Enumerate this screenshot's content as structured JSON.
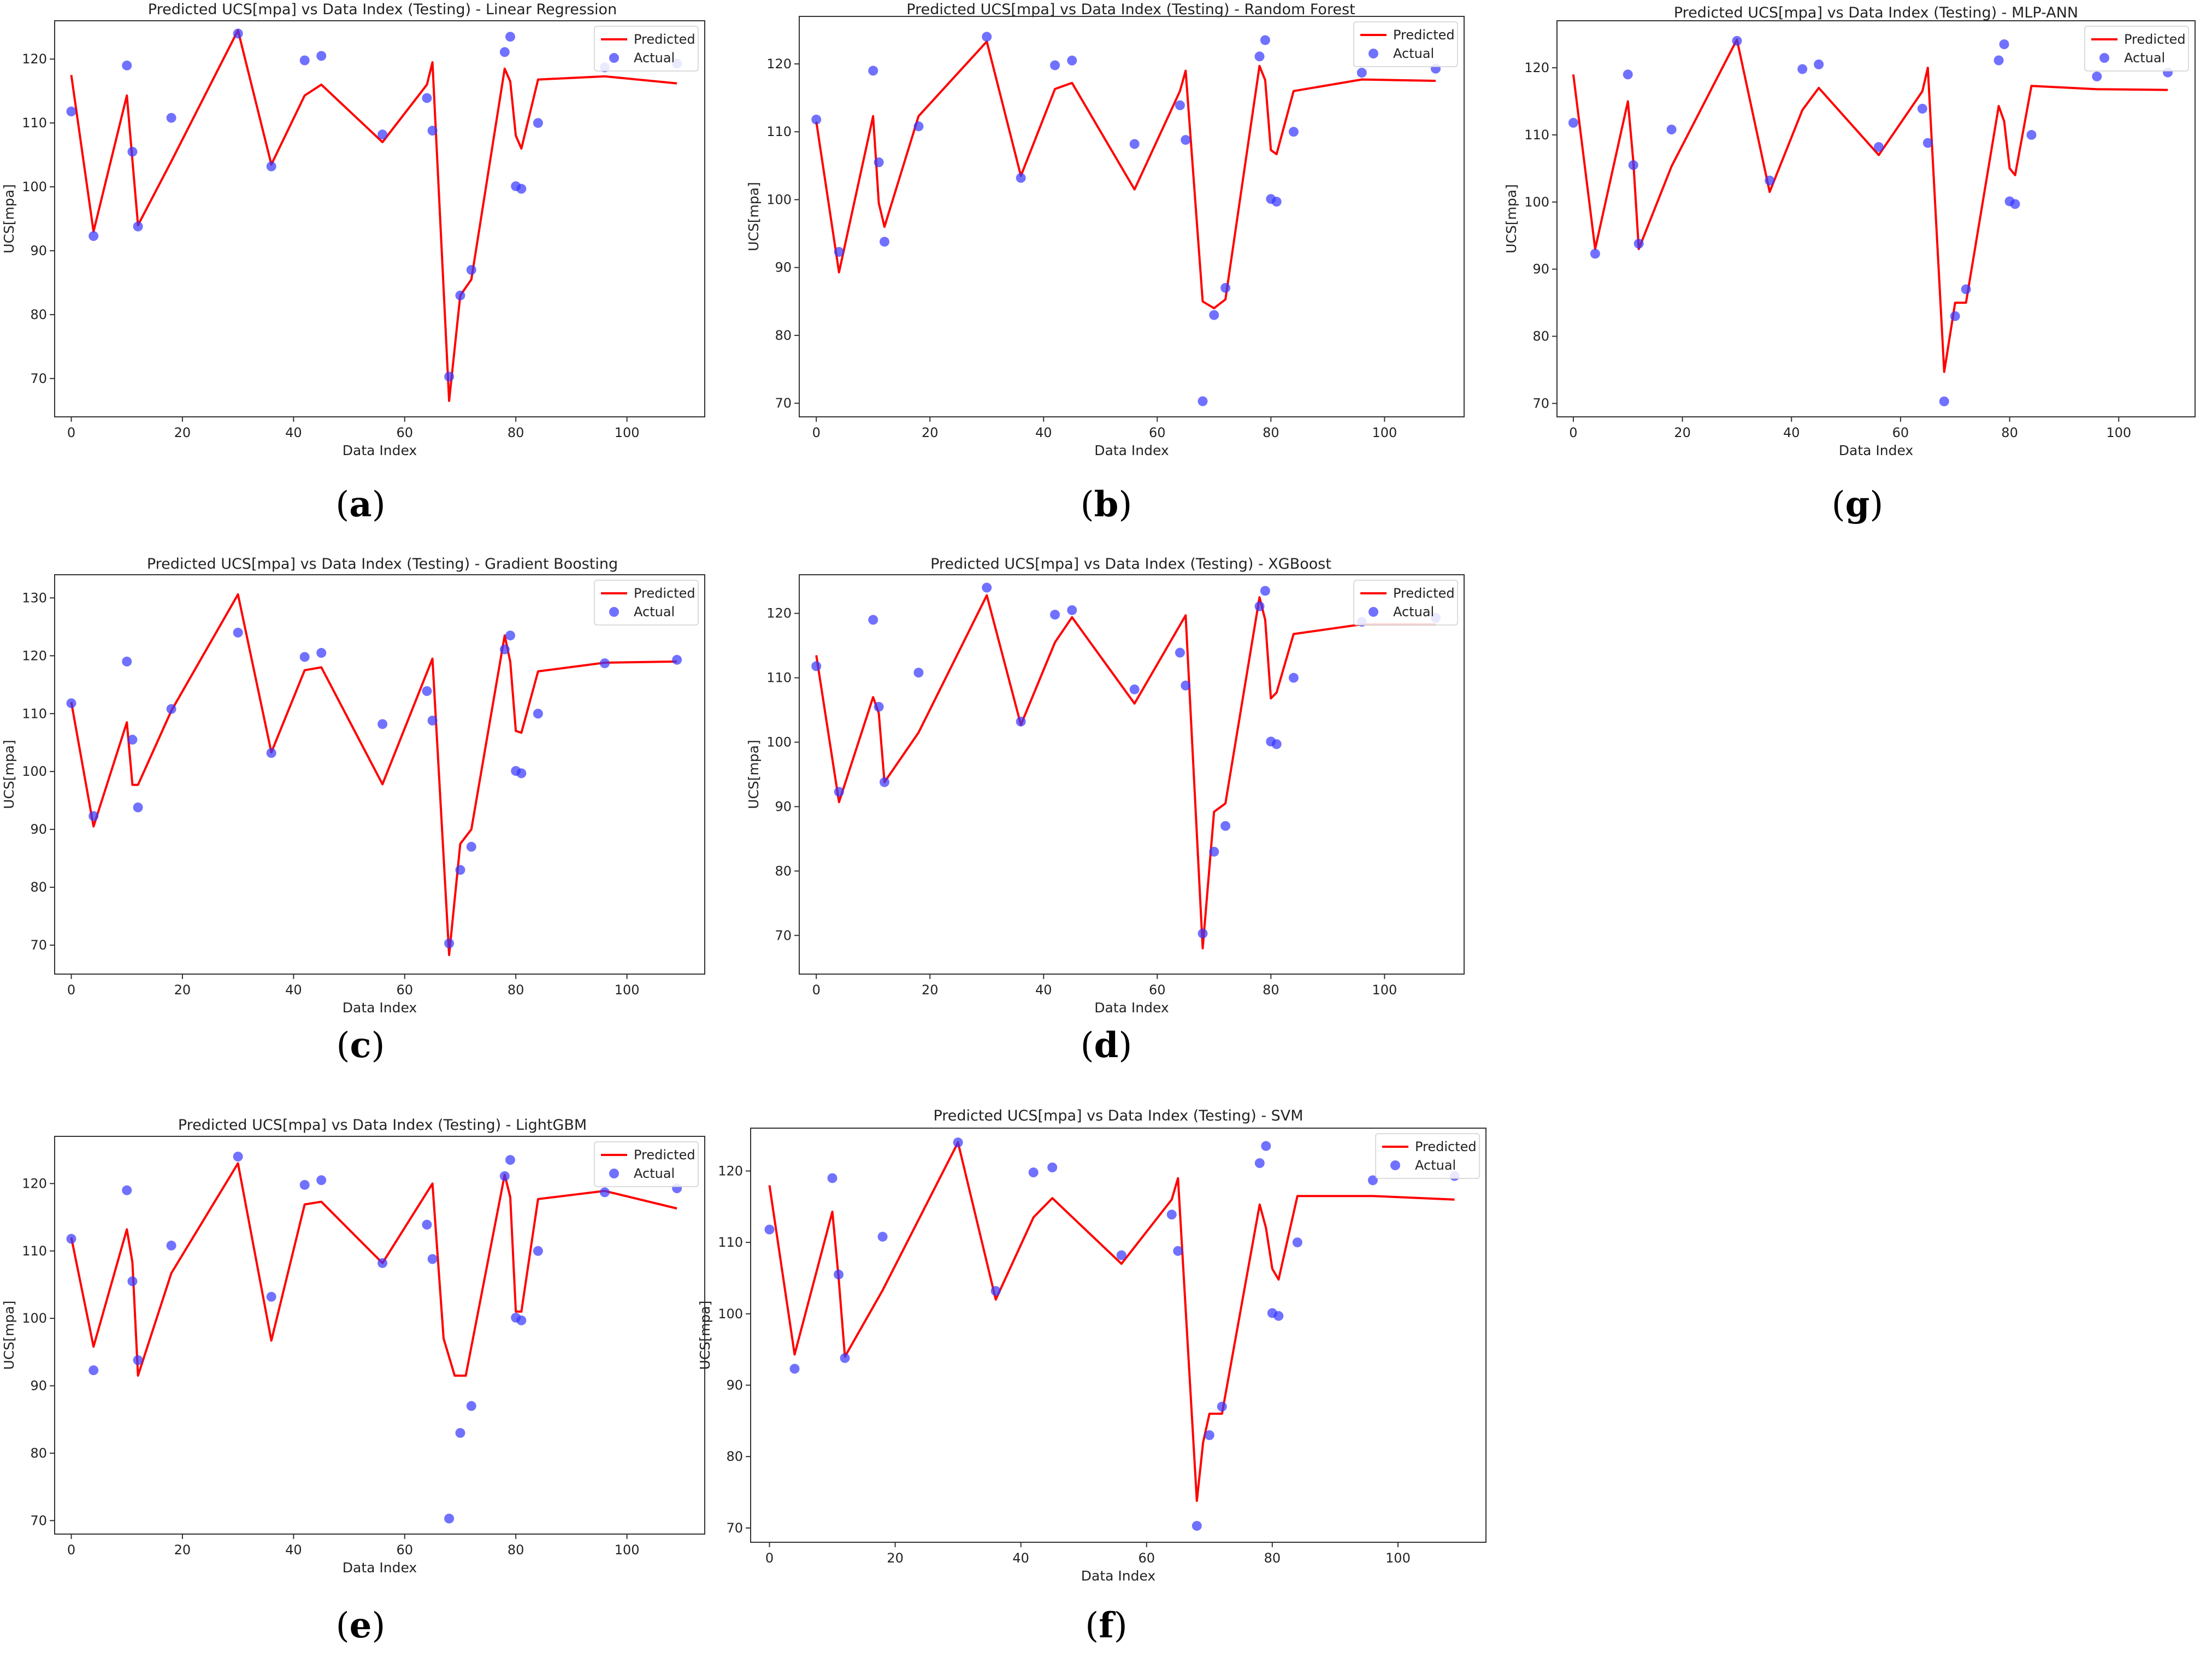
{
  "figure": {
    "common": {
      "xlabel": "Data Index",
      "ylabel": "UCS[mpa]",
      "legend": [
        "Predicted",
        "Actual"
      ],
      "legend_position": "top-right",
      "colors": {
        "predicted": "#ff0000",
        "actual": "#3a3aff",
        "axes": "#333333"
      }
    }
  },
  "chart_data": [
    {
      "id": "a",
      "caption": "(a)",
      "type": "line",
      "title": "Predicted UCS[mpa] vs Data Index (Testing) - Linear Regression",
      "xlabel": "Data Index",
      "ylabel": "UCS[mpa]",
      "xlim": [
        -3,
        114
      ],
      "ylim": [
        64,
        126
      ],
      "xticks": [
        0,
        20,
        40,
        60,
        80,
        100
      ],
      "yticks": [
        70,
        80,
        90,
        100,
        110,
        120
      ],
      "series": [
        {
          "name": "Predicted",
          "kind": "line",
          "x": [
            0,
            4,
            10,
            12,
            18,
            30,
            36,
            42,
            45,
            56,
            64,
            65,
            68,
            70,
            72,
            78,
            79,
            80,
            81,
            84,
            96,
            109
          ],
          "y": [
            117.5,
            93,
            114.3,
            94,
            104,
            124.5,
            103.5,
            114.3,
            116,
            107,
            116,
            119.5,
            66.5,
            83,
            85.5,
            118.5,
            116.5,
            108,
            106,
            116.8,
            117.3,
            116.2
          ]
        },
        {
          "name": "Actual",
          "kind": "scatter",
          "x": [
            0,
            4,
            10,
            11,
            12,
            18,
            30,
            36,
            42,
            45,
            56,
            64,
            65,
            68,
            70,
            72,
            78,
            79,
            80,
            81,
            84,
            96,
            109
          ],
          "y": [
            111.8,
            92.3,
            119,
            105.5,
            93.8,
            110.8,
            124,
            103.2,
            119.8,
            120.5,
            108.2,
            113.9,
            108.8,
            70.3,
            83,
            87,
            121.1,
            123.5,
            100.1,
            99.7,
            110,
            118.7,
            119.3
          ]
        }
      ]
    },
    {
      "id": "b",
      "caption": "(b)",
      "type": "line",
      "title": "Predicted UCS[mpa] vs Data Index (Testing) - Random Forest",
      "xlabel": "Data Index",
      "ylabel": "UCS[mpa]",
      "xlim": [
        -3,
        114
      ],
      "ylim": [
        68,
        127
      ],
      "xticks": [
        0,
        20,
        40,
        60,
        80,
        100
      ],
      "yticks": [
        70,
        80,
        90,
        100,
        110,
        120
      ],
      "series": [
        {
          "name": "Predicted",
          "kind": "line",
          "x": [
            0,
            4,
            10,
            11,
            12,
            18,
            30,
            36,
            42,
            45,
            56,
            64,
            65,
            68,
            70,
            72,
            78,
            79,
            80,
            81,
            84,
            96,
            109
          ],
          "y": [
            111.5,
            89.3,
            112.3,
            99.5,
            96,
            112.3,
            123.3,
            103.5,
            116.3,
            117.2,
            101.5,
            116,
            119,
            85,
            84,
            85.3,
            119.7,
            117.6,
            107.3,
            106.7,
            116,
            117.7,
            117.5
          ]
        },
        {
          "name": "Actual",
          "kind": "scatter",
          "x": [
            0,
            4,
            10,
            11,
            12,
            18,
            30,
            36,
            42,
            45,
            56,
            64,
            65,
            68,
            70,
            72,
            78,
            79,
            80,
            81,
            84,
            96,
            109
          ],
          "y": [
            111.8,
            92.3,
            119,
            105.5,
            93.8,
            110.8,
            124,
            103.2,
            119.8,
            120.5,
            108.2,
            113.9,
            108.8,
            70.3,
            83,
            87,
            121.1,
            123.5,
            100.1,
            99.7,
            110,
            118.7,
            119.3
          ]
        }
      ]
    },
    {
      "id": "g",
      "caption": "(g)",
      "type": "line",
      "title": "Predicted UCS[mpa] vs Data Index (Testing) - MLP-ANN",
      "xlabel": "Data Index",
      "ylabel": "UCS[mpa]",
      "xlim": [
        -3,
        114
      ],
      "ylim": [
        68,
        127
      ],
      "xticks": [
        0,
        20,
        40,
        60,
        80,
        100
      ],
      "yticks": [
        70,
        80,
        90,
        100,
        110,
        120
      ],
      "series": [
        {
          "name": "Predicted",
          "kind": "line",
          "x": [
            0,
            4,
            10,
            11,
            12,
            18,
            30,
            36,
            42,
            45,
            56,
            64,
            65,
            68,
            70,
            72,
            78,
            79,
            80,
            81,
            84,
            96,
            109
          ],
          "y": [
            119,
            93,
            115,
            106,
            93,
            105.3,
            124.2,
            101.5,
            113.7,
            117,
            107,
            116.5,
            120,
            74.7,
            85,
            85,
            114.3,
            112,
            105,
            104,
            117.3,
            116.8,
            116.7
          ]
        },
        {
          "name": "Actual",
          "kind": "scatter",
          "x": [
            0,
            4,
            10,
            11,
            12,
            18,
            30,
            36,
            42,
            45,
            56,
            64,
            65,
            68,
            70,
            72,
            78,
            79,
            80,
            81,
            84,
            96,
            109
          ],
          "y": [
            111.8,
            92.3,
            119,
            105.5,
            93.8,
            110.8,
            124,
            103.2,
            119.8,
            120.5,
            108.2,
            113.9,
            108.8,
            70.3,
            83,
            87,
            121.1,
            123.5,
            100.1,
            99.7,
            110,
            118.7,
            119.3
          ]
        }
      ]
    },
    {
      "id": "c",
      "caption": "(c)",
      "type": "line",
      "title": "Predicted UCS[mpa] vs Data Index (Testing) - Gradient Boosting",
      "xlabel": "Data Index",
      "ylabel": "UCS[mpa]",
      "xlim": [
        -3,
        114
      ],
      "ylim": [
        65,
        134
      ],
      "xticks": [
        0,
        20,
        40,
        60,
        80,
        100
      ],
      "yticks": [
        70,
        80,
        90,
        100,
        110,
        120,
        130
      ],
      "series": [
        {
          "name": "Predicted",
          "kind": "line",
          "x": [
            0,
            4,
            10,
            11,
            12,
            18,
            30,
            36,
            42,
            45,
            56,
            65,
            68,
            70,
            72,
            78,
            79,
            80,
            81,
            84,
            96,
            109
          ],
          "y": [
            112,
            90.5,
            108.5,
            97.7,
            97.7,
            110.5,
            130.6,
            103.3,
            117.5,
            118,
            97.8,
            119.5,
            68.3,
            87.5,
            90,
            123.5,
            119,
            107,
            106.7,
            117.3,
            118.8,
            119
          ]
        },
        {
          "name": "Actual",
          "kind": "scatter",
          "x": [
            0,
            4,
            10,
            11,
            12,
            18,
            30,
            36,
            42,
            45,
            56,
            64,
            65,
            68,
            70,
            72,
            78,
            79,
            80,
            81,
            84,
            96,
            109
          ],
          "y": [
            111.8,
            92.3,
            119,
            105.5,
            93.8,
            110.8,
            124,
            103.2,
            119.8,
            120.5,
            108.2,
            113.9,
            108.8,
            70.3,
            83,
            87,
            121.1,
            123.5,
            100.1,
            99.7,
            110,
            118.7,
            119.3
          ]
        }
      ]
    },
    {
      "id": "d",
      "caption": "(d)",
      "type": "line",
      "title": "Predicted UCS[mpa] vs Data Index (Testing) - XGBoost",
      "xlabel": "Data Index",
      "ylabel": "UCS[mpa]",
      "xlim": [
        -3,
        114
      ],
      "ylim": [
        64,
        126
      ],
      "xticks": [
        0,
        20,
        40,
        60,
        80,
        100
      ],
      "yticks": [
        70,
        80,
        90,
        100,
        110,
        120
      ],
      "series": [
        {
          "name": "Predicted",
          "kind": "line",
          "x": [
            0,
            4,
            10,
            11,
            12,
            18,
            30,
            36,
            42,
            45,
            56,
            65,
            68,
            70,
            72,
            78,
            79,
            80,
            81,
            84,
            96,
            109
          ],
          "y": [
            113.5,
            90.7,
            107,
            104.5,
            93.8,
            101.5,
            122.8,
            102.7,
            115.5,
            119.4,
            106,
            119.7,
            68,
            89.2,
            90.5,
            122.5,
            119,
            106.8,
            107.7,
            116.8,
            118.3,
            118.3
          ]
        },
        {
          "name": "Actual",
          "kind": "scatter",
          "x": [
            0,
            4,
            10,
            11,
            12,
            18,
            30,
            36,
            42,
            45,
            56,
            64,
            65,
            68,
            70,
            72,
            78,
            79,
            80,
            81,
            84,
            96,
            109
          ],
          "y": [
            111.8,
            92.3,
            119,
            105.5,
            93.8,
            110.8,
            124,
            103.2,
            119.8,
            120.5,
            108.2,
            113.9,
            108.8,
            70.3,
            83,
            87,
            121.1,
            123.5,
            100.1,
            99.7,
            110,
            118.7,
            119.3
          ]
        }
      ]
    },
    {
      "id": "e",
      "caption": "(e)",
      "type": "line",
      "title": "Predicted UCS[mpa] vs Data Index (Testing) - LightGBM",
      "xlabel": "Data Index",
      "ylabel": "UCS[mpa]",
      "xlim": [
        -3,
        114
      ],
      "ylim": [
        68,
        127
      ],
      "xticks": [
        0,
        20,
        40,
        60,
        80,
        100
      ],
      "yticks": [
        70,
        80,
        90,
        100,
        110,
        120
      ],
      "series": [
        {
          "name": "Predicted",
          "kind": "line",
          "x": [
            0,
            4,
            10,
            11,
            12,
            18,
            30,
            36,
            42,
            45,
            56,
            65,
            67,
            69,
            71,
            78,
            79,
            80,
            81,
            84,
            96,
            109
          ],
          "y": [
            112,
            95.8,
            113.2,
            108.3,
            91.5,
            106.7,
            123,
            96.7,
            116.9,
            117.3,
            108.2,
            120,
            97,
            91.5,
            91.5,
            121.3,
            118,
            101,
            101,
            117.7,
            118.9,
            116.3
          ]
        },
        {
          "name": "Actual",
          "kind": "scatter",
          "x": [
            0,
            4,
            10,
            11,
            12,
            18,
            30,
            36,
            42,
            45,
            56,
            64,
            65,
            68,
            70,
            72,
            78,
            79,
            80,
            81,
            84,
            96,
            109
          ],
          "y": [
            111.8,
            92.3,
            119,
            105.5,
            93.8,
            110.8,
            124,
            103.2,
            119.8,
            120.5,
            108.2,
            113.9,
            108.8,
            70.3,
            83,
            87,
            121.1,
            123.5,
            100.1,
            99.7,
            110,
            118.7,
            119.3
          ]
        }
      ]
    },
    {
      "id": "f",
      "caption": "(f)",
      "type": "line",
      "title": "Predicted UCS[mpa] vs Data Index (Testing) - SVM",
      "xlabel": "Data Index",
      "ylabel": "UCS[mpa]",
      "xlim": [
        -3,
        114
      ],
      "ylim": [
        68,
        126
      ],
      "xticks": [
        0,
        20,
        40,
        60,
        80,
        100
      ],
      "yticks": [
        70,
        80,
        90,
        100,
        110,
        120
      ],
      "series": [
        {
          "name": "Predicted",
          "kind": "line",
          "x": [
            0,
            4,
            10,
            11,
            12,
            18,
            30,
            36,
            42,
            45,
            56,
            64,
            65,
            68,
            69,
            70,
            72,
            78,
            79,
            80,
            81,
            84,
            96,
            109
          ],
          "y": [
            118,
            94.3,
            114.3,
            105,
            94,
            103.3,
            124,
            102,
            113.5,
            116.2,
            107,
            116,
            119,
            73.8,
            82,
            86,
            86,
            115.3,
            112,
            106.3,
            104.8,
            116.5,
            116.5,
            116
          ]
        },
        {
          "name": "Actual",
          "kind": "scatter",
          "x": [
            0,
            4,
            10,
            11,
            12,
            18,
            30,
            36,
            42,
            45,
            56,
            64,
            65,
            68,
            70,
            72,
            78,
            79,
            80,
            81,
            84,
            96,
            109
          ],
          "y": [
            111.8,
            92.3,
            119,
            105.5,
            93.8,
            110.8,
            124,
            103.2,
            119.8,
            120.5,
            108.2,
            113.9,
            108.8,
            70.3,
            83,
            87,
            121.1,
            123.5,
            100.1,
            99.7,
            110,
            118.7,
            119.3
          ]
        }
      ]
    }
  ]
}
